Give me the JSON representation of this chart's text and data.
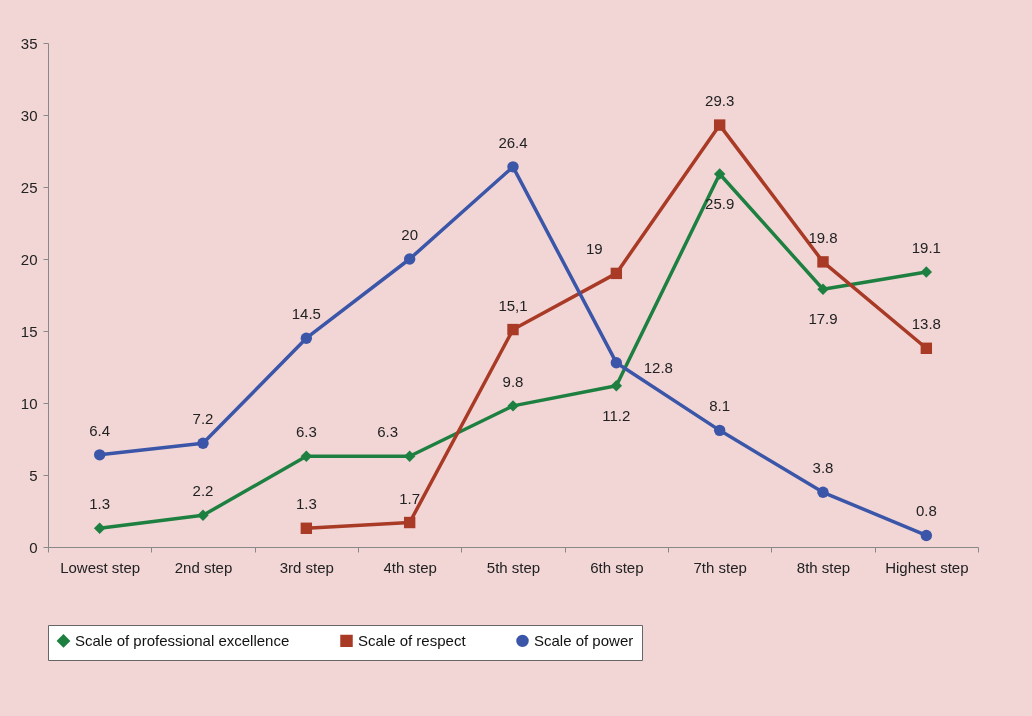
{
  "chart_data": {
    "type": "line",
    "categories": [
      "Lowest step",
      "2nd step",
      "3rd step",
      "4th step",
      "5th step",
      "6th step",
      "7th step",
      "8th step",
      "Highest step"
    ],
    "series": [
      {
        "name": "Scale of professional excellence",
        "color": "#1e8040",
        "marker": "diamond",
        "values": [
          1.3,
          2.2,
          6.3,
          6.3,
          9.8,
          11.2,
          25.9,
          17.9,
          19.1
        ],
        "value_labels": [
          "1.3",
          "2.2",
          "6.3",
          "6.3",
          "9.8",
          "11.2",
          "25.9",
          "17.9",
          "19.1"
        ]
      },
      {
        "name": "Scale of respect",
        "color": "#a83a26",
        "marker": "square",
        "values": [
          null,
          null,
          1.3,
          1.7,
          15.1,
          19,
          29.3,
          19.8,
          13.8
        ],
        "value_labels": [
          null,
          null,
          "1.3",
          "1.7",
          "15,1",
          "19",
          "29.3",
          "19.8",
          "13.8"
        ]
      },
      {
        "name": "Scale of power",
        "color": "#3b56a8",
        "marker": "circle",
        "values": [
          6.4,
          7.2,
          14.5,
          20,
          26.4,
          12.8,
          8.1,
          3.8,
          0.8
        ],
        "value_labels": [
          "6.4",
          "7.2",
          "14.5",
          "20",
          "26.4",
          "12.8",
          "8.1",
          "3.8",
          "0.8"
        ]
      }
    ],
    "ylim": [
      0,
      35
    ],
    "yticks": [
      0,
      5,
      10,
      15,
      20,
      25,
      30,
      35
    ],
    "grid": false,
    "legend": "bottom"
  }
}
